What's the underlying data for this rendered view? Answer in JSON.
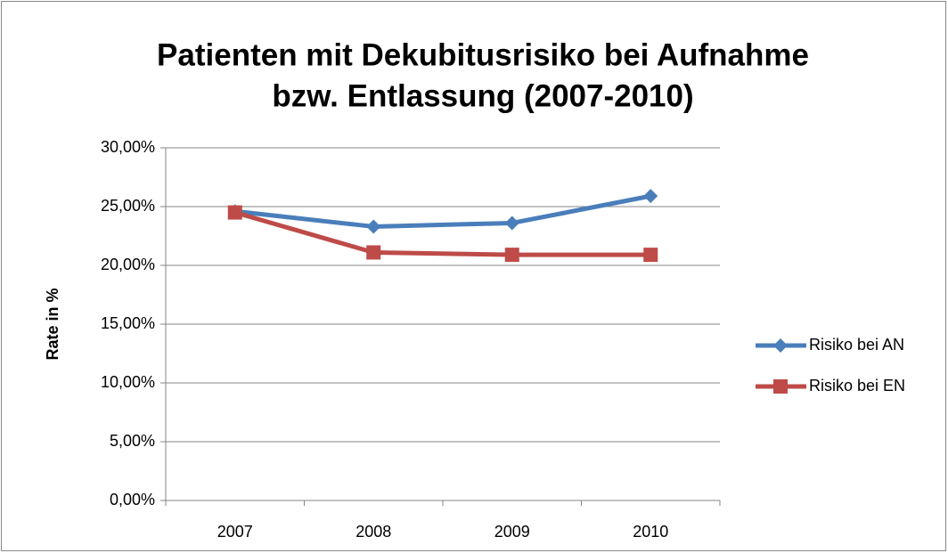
{
  "chart_data": {
    "type": "line",
    "title": [
      "Patienten mit Dekubitusrisiko bei Aufnahme",
      "bzw. Entlassung (2007-2010)"
    ],
    "y_axis_label": "Rate in %",
    "categories": [
      "2007",
      "2008",
      "2009",
      "2010"
    ],
    "series": [
      {
        "name": "Risiko bei AN",
        "color": "#4a7ebb",
        "marker": "diamond",
        "values": [
          24.6,
          23.3,
          23.6,
          25.9
        ]
      },
      {
        "name": "Risiko bei EN",
        "color": "#be4b48",
        "marker": "square",
        "values": [
          24.5,
          21.1,
          20.9,
          20.9
        ]
      }
    ],
    "ylim": [
      0,
      30
    ],
    "yticks": [
      {
        "value": 0,
        "label": "0,00%"
      },
      {
        "value": 5,
        "label": "5,00%"
      },
      {
        "value": 10,
        "label": "10,00%"
      },
      {
        "value": 15,
        "label": "15,00%"
      },
      {
        "value": 20,
        "label": "20,00%"
      },
      {
        "value": 25,
        "label": "25,00%"
      },
      {
        "value": 30,
        "label": "30,00%"
      }
    ],
    "grid": true,
    "legend": "right"
  }
}
